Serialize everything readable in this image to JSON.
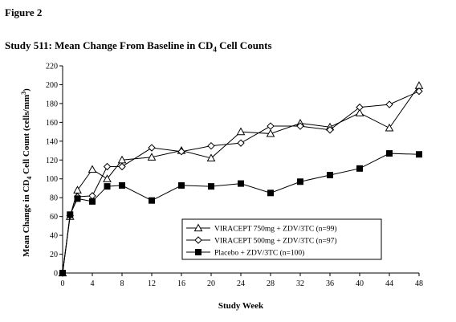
{
  "figure_label": "Figure 2",
  "chart_data": {
    "type": "line",
    "title": {
      "main": "Study 511:  Mean Change From Baseline in CD",
      "sub": "4",
      "tail": " Cell Counts"
    },
    "xlabel": "Study Week",
    "ylabel": {
      "main": "Mean Change in CD",
      "sub": "4",
      "tail": " Cell Count (cells/mm",
      "sup": "3",
      "close": ")"
    },
    "xlim": [
      0,
      48
    ],
    "ylim": [
      0,
      220
    ],
    "xticks": [
      0,
      4,
      8,
      12,
      16,
      20,
      24,
      28,
      32,
      36,
      40,
      44,
      48
    ],
    "yticks": [
      0,
      20,
      40,
      60,
      80,
      100,
      120,
      140,
      160,
      180,
      200,
      220
    ],
    "grid": false,
    "legend_position": "lower-right",
    "series": [
      {
        "name": "VIRACEPT 750mg + ZDV/3TC (n=99)",
        "marker": "triangle-open",
        "x": [
          0,
          1,
          2,
          4,
          6,
          8,
          12,
          16,
          20,
          24,
          28,
          32,
          36,
          40,
          44,
          48
        ],
        "y": [
          0,
          60,
          88,
          110,
          100,
          120,
          123,
          130,
          122,
          150,
          148,
          159,
          155,
          170,
          154,
          199
        ]
      },
      {
        "name": "VIRACEPT 500mg + ZDV/3TC (n=97)",
        "marker": "diamond-open",
        "x": [
          0,
          1,
          2,
          4,
          6,
          8,
          12,
          16,
          20,
          24,
          28,
          32,
          36,
          40,
          44,
          48
        ],
        "y": [
          0,
          61,
          81,
          82,
          113,
          113,
          133,
          129,
          135,
          138,
          156,
          156,
          152,
          176,
          179,
          193
        ]
      },
      {
        "name": "Placebo + ZDV/3TC (n=100)",
        "marker": "square-filled",
        "x": [
          0,
          1,
          2,
          4,
          6,
          8,
          12,
          16,
          20,
          24,
          28,
          32,
          36,
          40,
          44,
          48
        ],
        "y": [
          0,
          62,
          79,
          76,
          92,
          93,
          77,
          93,
          92,
          95,
          85,
          97,
          104,
          111,
          127,
          126
        ]
      }
    ]
  }
}
